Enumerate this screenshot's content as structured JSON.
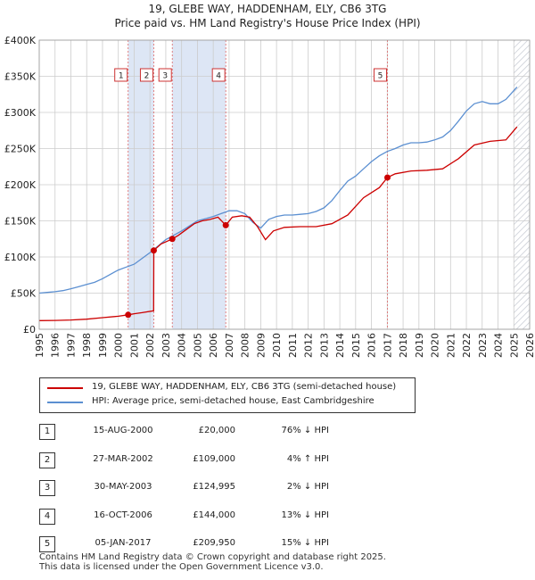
{
  "title_line1": "19, GLEBE WAY, HADDENHAM, ELY, CB6 3TG",
  "title_line2": "Price paid vs. HM Land Registry's House Price Index (HPI)",
  "colors": {
    "property": "#cc0000",
    "hpi": "#5b8fd1",
    "shade": "#dde6f5",
    "hatch": "#c8ccd4",
    "grid": "#cccccc",
    "vline": "#dd6666"
  },
  "legend": {
    "property_label": "19, GLEBE WAY, HADDENHAM, ELY, CB6 3TG (semi-detached house)",
    "hpi_label": "HPI: Average price, semi-detached house, East Cambridgeshire"
  },
  "transactions": [
    {
      "num": "1",
      "date": "15-AUG-2000",
      "price": "£20,000",
      "hpi": "76% ↓ HPI"
    },
    {
      "num": "2",
      "date": "27-MAR-2002",
      "price": "£109,000",
      "hpi": "4% ↑ HPI"
    },
    {
      "num": "3",
      "date": "30-MAY-2003",
      "price": "£124,995",
      "hpi": "2% ↓ HPI"
    },
    {
      "num": "4",
      "date": "16-OCT-2006",
      "price": "£144,000",
      "hpi": "13% ↓ HPI"
    },
    {
      "num": "5",
      "date": "05-JAN-2017",
      "price": "£209,950",
      "hpi": "15% ↓ HPI"
    }
  ],
  "footer": {
    "line1": "Contains HM Land Registry data © Crown copyright and database right 2025.",
    "line2": "This data is licensed under the Open Government Licence v3.0."
  },
  "chart_data": {
    "type": "line",
    "title": "19, GLEBE WAY, HADDENHAM, ELY, CB6 3TG",
    "subtitle": "Price paid vs. HM Land Registry's House Price Index (HPI)",
    "xlim": [
      1995,
      2026
    ],
    "ylim": [
      0,
      400000
    ],
    "x_ticks": [
      "1995",
      "1996",
      "1997",
      "1998",
      "1999",
      "2000",
      "2001",
      "2002",
      "2003",
      "2004",
      "2005",
      "2006",
      "2007",
      "2008",
      "2009",
      "2010",
      "2011",
      "2012",
      "2013",
      "2014",
      "2015",
      "2016",
      "2017",
      "2018",
      "2019",
      "2020",
      "2021",
      "2022",
      "2023",
      "2024",
      "2025",
      "2026"
    ],
    "y_ticks": [
      {
        "value": 0,
        "label": "£0"
      },
      {
        "value": 50000,
        "label": "£50K"
      },
      {
        "value": 100000,
        "label": "£100K"
      },
      {
        "value": 150000,
        "label": "£150K"
      },
      {
        "value": 200000,
        "label": "£200K"
      },
      {
        "value": 250000,
        "label": "£250K"
      },
      {
        "value": 300000,
        "label": "£300K"
      },
      {
        "value": 350000,
        "label": "£350K"
      },
      {
        "value": 400000,
        "label": "£400K"
      }
    ],
    "grid": true,
    "shaded_ranges": [
      [
        2000.62,
        2002.24
      ],
      [
        2003.41,
        2006.79
      ]
    ],
    "forecast_from": 2025.0,
    "series": [
      {
        "name": "HPI: Average price, semi-detached house, East Cambridgeshire",
        "x": [
          1995,
          1995.5,
          1996,
          1996.5,
          1997,
          1997.5,
          1998,
          1998.5,
          1999,
          1999.5,
          2000,
          2000.5,
          2001,
          2001.5,
          2002,
          2002.5,
          2003,
          2003.5,
          2004,
          2004.5,
          2005,
          2005.5,
          2006,
          2006.5,
          2007,
          2007.5,
          2008,
          2008.5,
          2009,
          2009.5,
          2010,
          2010.5,
          2011,
          2011.5,
          2012,
          2012.5,
          2013,
          2013.5,
          2014,
          2014.5,
          2015,
          2015.5,
          2016,
          2016.5,
          2017,
          2017.5,
          2018,
          2018.5,
          2019,
          2019.5,
          2020,
          2020.5,
          2021,
          2021.5,
          2022,
          2022.5,
          2023,
          2023.5,
          2024,
          2024.5,
          2025.2
        ],
        "values": [
          50000,
          51000,
          52000,
          53500,
          56000,
          59000,
          62000,
          65000,
          70000,
          76000,
          82000,
          86000,
          90000,
          98000,
          106000,
          115000,
          124000,
          130000,
          136000,
          143000,
          150000,
          153000,
          156000,
          160000,
          164000,
          164000,
          160000,
          148000,
          140000,
          152000,
          156000,
          158000,
          158000,
          159000,
          160000,
          163000,
          168000,
          178000,
          192000,
          205000,
          212000,
          222000,
          232000,
          240000,
          246000,
          250000,
          255000,
          258000,
          258000,
          259000,
          262000,
          266000,
          275000,
          288000,
          302000,
          312000,
          315000,
          312000,
          312000,
          318000,
          335000
        ]
      },
      {
        "name": "19, GLEBE WAY, HADDENHAM, ELY, CB6 3TG (semi-detached house)",
        "x": [
          1995,
          1996,
          1997,
          1998,
          1999,
          2000,
          2000.62,
          2001,
          2001.5,
          2002.23,
          2002.24,
          2002.7,
          2003.41,
          2003.8,
          2004.3,
          2004.8,
          2005.3,
          2005.8,
          2006.3,
          2006.79,
          2007.2,
          2007.8,
          2008.3,
          2008.8,
          2009.3,
          2009.8,
          2010.5,
          2011.5,
          2012.5,
          2013.5,
          2014.5,
          2015.5,
          2016.5,
          2017.01,
          2017.5,
          2018.5,
          2019.5,
          2020.5,
          2021.5,
          2022.5,
          2023.5,
          2024.5,
          2025.2
        ],
        "values": [
          12000,
          12200,
          12800,
          14000,
          16000,
          18000,
          20000,
          21500,
          23000,
          25500,
          109000,
          118000,
          124995,
          130000,
          138000,
          146000,
          150000,
          152000,
          155000,
          144000,
          155000,
          157000,
          155000,
          142000,
          124000,
          136000,
          141000,
          142000,
          142000,
          146000,
          158000,
          182000,
          196000,
          209950,
          215000,
          219000,
          220000,
          222000,
          236000,
          255000,
          260000,
          262000,
          280000
        ]
      }
    ],
    "markers": [
      {
        "num": "1",
        "x": 2000.62,
        "y": 20000
      },
      {
        "num": "2",
        "x": 2002.24,
        "y": 109000
      },
      {
        "num": "3",
        "x": 2003.41,
        "y": 124995
      },
      {
        "num": "4",
        "x": 2006.79,
        "y": 144000
      },
      {
        "num": "5",
        "x": 2017.01,
        "y": 209950
      }
    ]
  }
}
